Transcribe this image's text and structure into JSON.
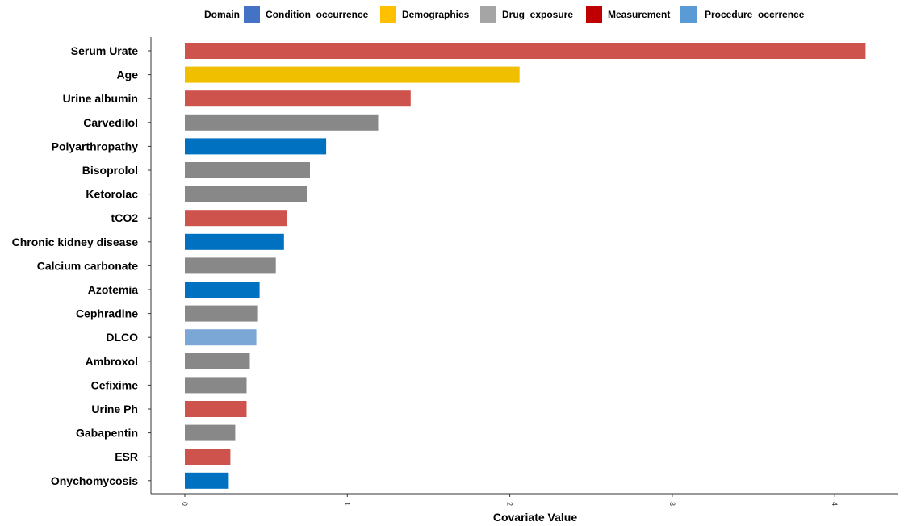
{
  "chart_data": {
    "type": "bar",
    "orientation": "horizontal",
    "xlabel": "Covariate Value",
    "ylabel": "",
    "title": "",
    "xlim": [
      0,
      4.3
    ],
    "x_ticks": [
      "0",
      "1",
      "2",
      "3",
      "4"
    ],
    "grid": false,
    "legend": {
      "title": "Domain",
      "placement": "top",
      "entries": [
        {
          "name": "Condition_occurrence",
          "color": "#4472C4"
        },
        {
          "name": "Demographics",
          "color": "#FFC000"
        },
        {
          "name": "Drug_exposure",
          "color": "#A5A5A5"
        },
        {
          "name": "Measurement",
          "color": "#C00000"
        },
        {
          "name": "Procedure_occrrence",
          "color": "#5B9BD5"
        }
      ]
    },
    "domain_colors": {
      "Condition_occurrence": "#0070C0",
      "Demographics": "#F0C000",
      "Drug_exposure": "#888888",
      "Measurement": "#CD534C",
      "Procedure_occrrence": "#7BA7D7"
    },
    "categories": [
      "Serum Urate",
      "Age",
      "Urine albumin",
      "Carvedilol",
      "Polyarthropathy",
      "Bisoprolol",
      "Ketorolac",
      "tCO2",
      "Chronic kidney disease",
      "Calcium carbonate",
      "Azotemia",
      "Cephradine",
      "DLCO",
      "Ambroxol",
      "Cefixime",
      "Urine Ph",
      "Gabapentin",
      "ESR",
      "Onychomycosis"
    ],
    "values": [
      4.19,
      2.06,
      1.39,
      1.19,
      0.87,
      0.77,
      0.75,
      0.63,
      0.61,
      0.56,
      0.46,
      0.45,
      0.44,
      0.4,
      0.38,
      0.38,
      0.31,
      0.28,
      0.27
    ],
    "domains": [
      "Measurement",
      "Demographics",
      "Measurement",
      "Drug_exposure",
      "Condition_occurrence",
      "Drug_exposure",
      "Drug_exposure",
      "Measurement",
      "Condition_occurrence",
      "Drug_exposure",
      "Condition_occurrence",
      "Drug_exposure",
      "Procedure_occrrence",
      "Drug_exposure",
      "Drug_exposure",
      "Measurement",
      "Drug_exposure",
      "Measurement",
      "Condition_occurrence"
    ]
  }
}
